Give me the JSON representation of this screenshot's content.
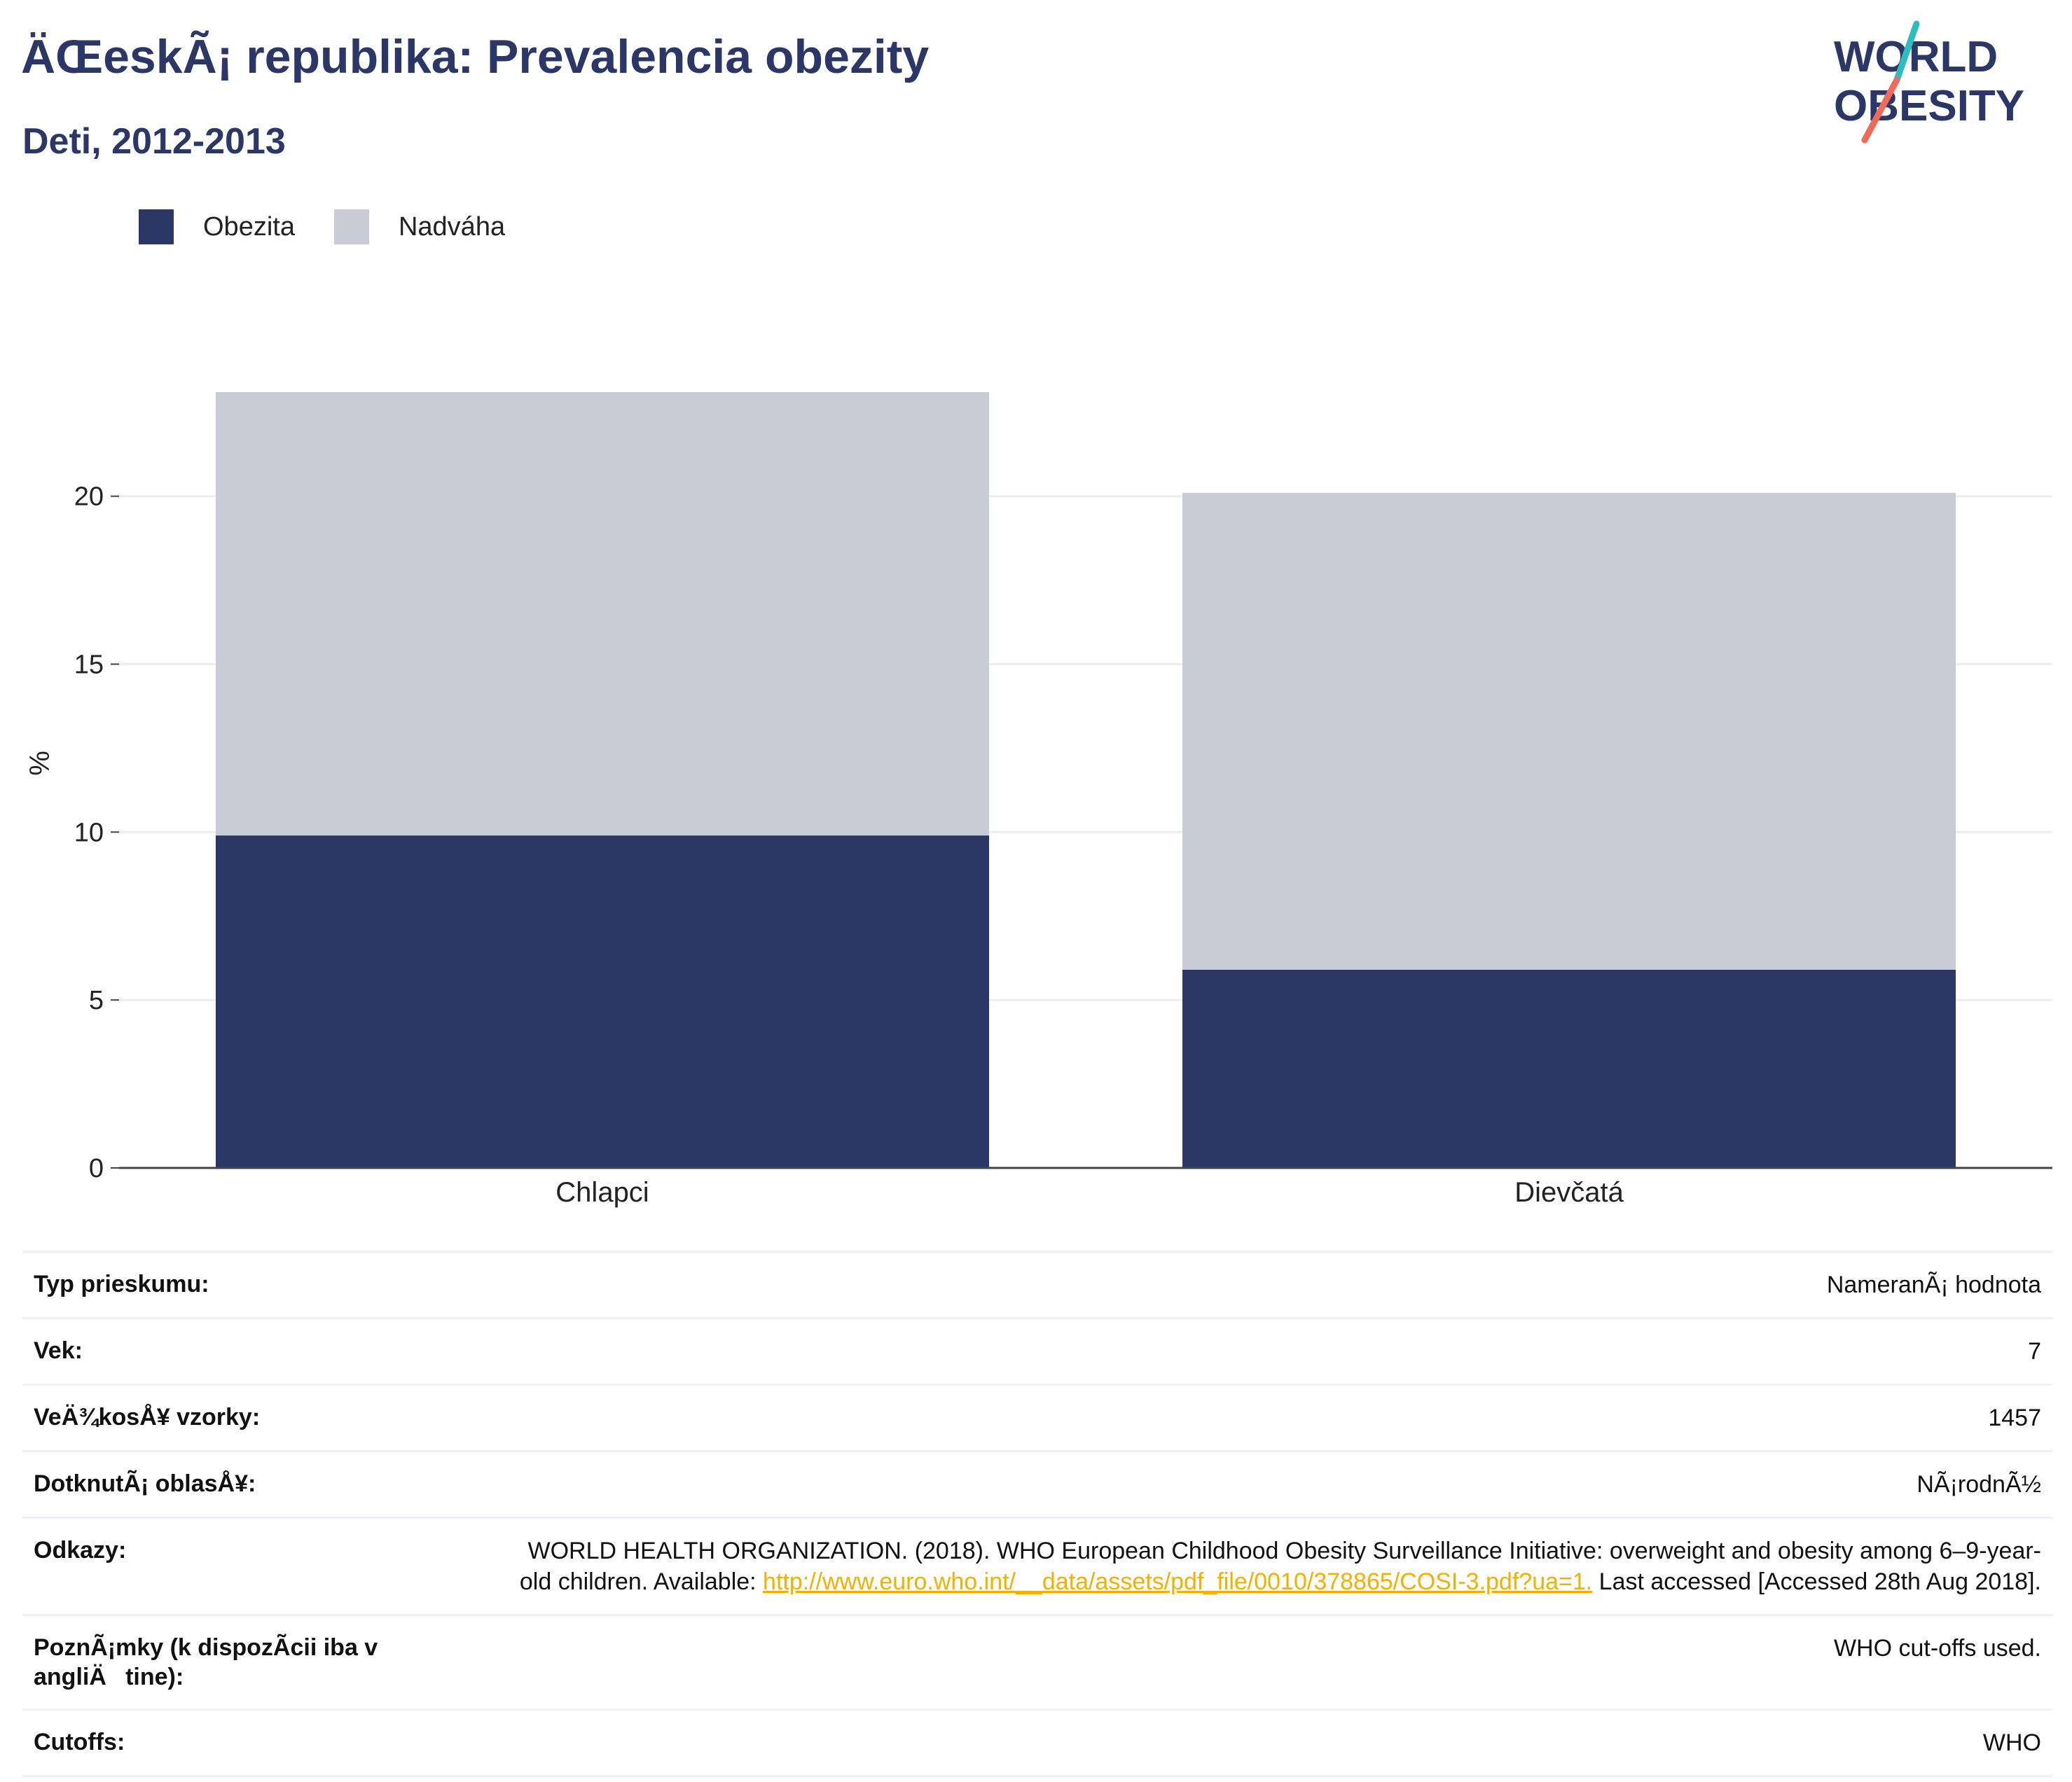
{
  "header": {
    "title": "ÄŒeskÃ¡ republika: Prevalencia obezity",
    "subtitle": "Deti, 2012-2013",
    "logo_line1": "WORLD",
    "logo_line2": "OBESITY"
  },
  "legend": [
    {
      "label": "Obezita",
      "color": "#2b3765"
    },
    {
      "label": "Nadváha",
      "color": "#cacdd8"
    }
  ],
  "chart_data": {
    "type": "bar",
    "stacked": true,
    "categories": [
      "Chlapci",
      "Dievčatá"
    ],
    "series": [
      {
        "name": "Obezita",
        "values": [
          9.9,
          5.9
        ],
        "color": "#2b3765"
      },
      {
        "name": "Nadváha",
        "values": [
          13.2,
          14.2
        ],
        "color": "#cacdd8"
      }
    ],
    "ylabel": "%",
    "yticks": [
      0,
      5,
      10,
      15,
      20
    ],
    "ylim": [
      0,
      23.1
    ],
    "grid": true
  },
  "info_table": {
    "rows": [
      {
        "label": "Typ prieskumu:",
        "value": "NameranÃ¡ hodnota"
      },
      {
        "label": "Vek:",
        "value": "7"
      },
      {
        "label": "VeÄ¾kosÅ¥ vzorky:",
        "value": "1457"
      },
      {
        "label": "DotknutÃ¡ oblasÅ¥:",
        "value": "NÃ¡rodnÃ½"
      }
    ],
    "references_label": "Odkazy:",
    "references_text_before": "WORLD HEALTH ORGANIZATION. (2018). WHO European Childhood Obesity Surveillance Initiative: overweight and obesity among 6–9-year-old children. Available: ",
    "references_link": "http://www.euro.who.int/__data/assets/pdf_file/0010/378865/COSI-3.pdf?ua=1.",
    "references_text_after": " Last accessed [Accessed 28th Aug 2018].",
    "notes_label": "PoznÃ¡mky (k dispozÃ­cii iba v angliÄtine):",
    "notes_value": "WHO cut-offs used.",
    "cutoffs_label": "Cutoffs:",
    "cutoffs_value": "WHO"
  }
}
